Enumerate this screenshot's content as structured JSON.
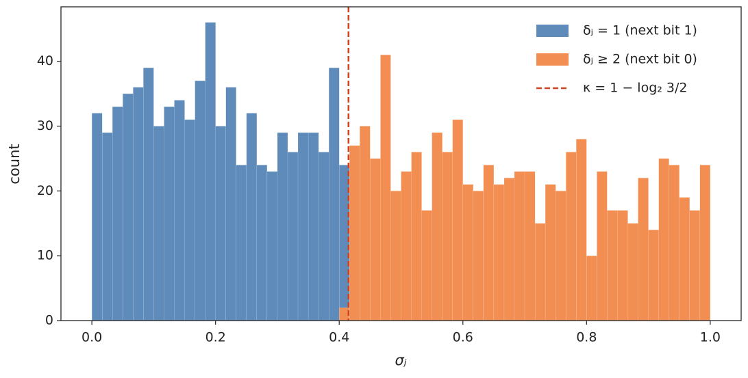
{
  "chart_data": {
    "type": "histogram",
    "xlabel": "σⱼ",
    "ylabel": "count",
    "bins": [
      0.0,
      0.0167,
      0.0333,
      0.05,
      0.0667,
      0.0833,
      0.1,
      0.1167,
      0.1333,
      0.15,
      0.1667,
      0.1833,
      0.2,
      0.2167,
      0.2333,
      0.25,
      0.2667,
      0.2833,
      0.3,
      0.3167,
      0.3333,
      0.35,
      0.3667,
      0.3833,
      0.4,
      0.4167,
      0.4333,
      0.45,
      0.4667,
      0.4833,
      0.5,
      0.5167,
      0.5333,
      0.55,
      0.5667,
      0.5833,
      0.6,
      0.6167,
      0.6333,
      0.65,
      0.6667,
      0.6833,
      0.7,
      0.7167,
      0.7333,
      0.75,
      0.7667,
      0.7833,
      0.8,
      0.8167,
      0.8333,
      0.85,
      0.8667,
      0.8833,
      0.9,
      0.9167,
      0.9333,
      0.95,
      0.9667,
      0.9833,
      1.0
    ],
    "series": [
      {
        "name": "δⱼ = 1 (next bit 1)",
        "color": "#5f8bba",
        "values": [
          32,
          29,
          33,
          35,
          36,
          39,
          30,
          33,
          34,
          31,
          37,
          46,
          30,
          36,
          24,
          32,
          24,
          23,
          29,
          26,
          29,
          29,
          26,
          39,
          24,
          0,
          0,
          0,
          0,
          0,
          0,
          0,
          0,
          0,
          0,
          0,
          0,
          0,
          0,
          0,
          0,
          0,
          0,
          0,
          0,
          0,
          0,
          0,
          0,
          0,
          0,
          0,
          0,
          0,
          0,
          0,
          0,
          0,
          0,
          0
        ]
      },
      {
        "name": "δⱼ ≥ 2 (next bit 0)",
        "color": "#f28e52",
        "values": [
          0,
          0,
          0,
          0,
          0,
          0,
          0,
          0,
          0,
          0,
          0,
          0,
          0,
          0,
          0,
          0,
          0,
          0,
          0,
          0,
          0,
          0,
          0,
          0,
          2,
          27,
          30,
          25,
          41,
          20,
          23,
          26,
          17,
          29,
          26,
          31,
          21,
          20,
          24,
          21,
          22,
          23,
          23,
          15,
          21,
          20,
          26,
          28,
          10,
          23,
          17,
          17,
          15,
          22,
          14,
          25,
          24,
          19,
          17,
          24
        ]
      }
    ],
    "vline": {
      "x": 0.415,
      "name": "κ = 1 − log₂ 3/2",
      "color": "#d0421b"
    },
    "xlim": [
      -0.05,
      1.05
    ],
    "ylim": [
      0,
      48.4
    ],
    "xticks": [
      {
        "value": 0,
        "label": "0.0"
      },
      0.2,
      0.4,
      0.6,
      0.8,
      {
        "value": 1,
        "label": "1.0"
      }
    ],
    "yticks": [
      0,
      10,
      20,
      30,
      40
    ],
    "legend": "upper right"
  }
}
